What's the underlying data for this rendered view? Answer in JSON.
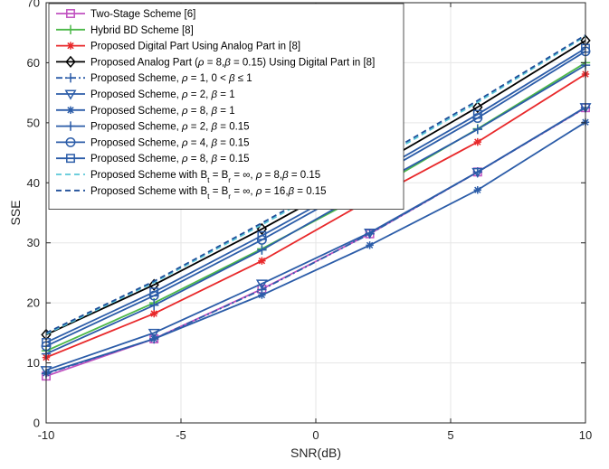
{
  "chart_data": {
    "type": "line",
    "title": "",
    "xlabel": "SNR(dB)",
    "ylabel": "SSE",
    "xlim": [
      -10,
      10
    ],
    "ylim": [
      0,
      70
    ],
    "xticks": [
      -10,
      -5,
      0,
      5,
      10
    ],
    "yticks": [
      0,
      10,
      20,
      30,
      40,
      50,
      60,
      70
    ],
    "grid": true,
    "legend_position": "top-left",
    "x": [
      -10,
      -6,
      -2,
      2,
      6,
      10
    ],
    "series": [
      {
        "name": "Two-Stage Scheme [6]",
        "color": "#c050c0",
        "line": "solid",
        "marker": "square",
        "values": [
          7.8,
          14.0,
          22.3,
          31.5,
          41.8,
          52.5
        ]
      },
      {
        "name": "Hybrid BD Scheme [8]",
        "color": "#4cb848",
        "line": "solid",
        "marker": "plus",
        "values": [
          12.0,
          20.0,
          29.0,
          38.5,
          49.0,
          60.0
        ]
      },
      {
        "name": "Proposed Digital Part Using Analog Part in [8]",
        "color": "#e8282a",
        "line": "solid",
        "marker": "asterisk",
        "values": [
          10.9,
          18.2,
          27.0,
          37.2,
          46.8,
          58.1
        ]
      },
      {
        "name": "Proposed Analog Part (ρ = 8,β = 0.15) Using Digital Part in [8]",
        "color": "#000000",
        "line": "solid",
        "marker": "diamond",
        "values": [
          14.7,
          23.0,
          32.3,
          42.2,
          52.6,
          63.7
        ]
      },
      {
        "name": "Proposed Scheme, ρ = 1, 0 < β ≤ 1",
        "color": "#2b5ca8",
        "line": "dashdot",
        "marker": "plus",
        "values": [
          8.2,
          14.0,
          22.2,
          31.5,
          41.8,
          52.5
        ]
      },
      {
        "name": "Proposed Scheme, ρ = 2, β = 1",
        "color": "#2b5ca8",
        "line": "solid",
        "marker": "triangle-down",
        "values": [
          8.8,
          15.0,
          23.2,
          31.7,
          41.8,
          52.6
        ]
      },
      {
        "name": "Proposed Scheme, ρ = 8, β = 1",
        "color": "#2b5ca8",
        "line": "solid",
        "marker": "asterisk",
        "values": [
          8.3,
          14.0,
          21.3,
          29.6,
          38.8,
          50.1
        ]
      },
      {
        "name": "Proposed Scheme, ρ = 2, β = 0.15",
        "color": "#2b5ca8",
        "line": "solid",
        "marker": "plus",
        "values": [
          11.5,
          19.6,
          28.8,
          39.0,
          48.9,
          59.6
        ]
      },
      {
        "name": "Proposed Scheme, ρ = 4, β = 0.15",
        "color": "#2b5ca8",
        "line": "solid",
        "marker": "circle",
        "values": [
          12.8,
          21.2,
          30.5,
          40.5,
          50.8,
          61.9
        ]
      },
      {
        "name": "Proposed Scheme, ρ = 8, β = 0.15",
        "color": "#2b5ca8",
        "line": "solid",
        "marker": "square",
        "values": [
          13.4,
          21.8,
          31.2,
          41.1,
          51.4,
          62.4
        ]
      },
      {
        "name": "Proposed Scheme with Bt = Br = ∞, ρ = 8,β = 0.15",
        "color": "#5ac8d8",
        "line": "dashed",
        "marker": "none",
        "values": [
          14.8,
          23.4,
          33.0,
          43.0,
          53.4,
          64.4
        ]
      },
      {
        "name": "Proposed Scheme with Bt = Br = ∞, ρ = 16,β = 0.15",
        "color": "#1f4e99",
        "line": "dashed",
        "marker": "none",
        "values": [
          15.0,
          23.6,
          33.3,
          43.3,
          53.7,
          64.6
        ]
      }
    ]
  },
  "legend": [
    {
      "label": "Two-Stage Scheme [6]"
    },
    {
      "label": "Hybrid BD Scheme [8]"
    },
    {
      "label": "Proposed Digital Part Using Analog Part in [8]"
    },
    {
      "label": "Proposed Analog Part (ρ = 8,β = 0.15) Using Digital Part in [8]",
      "italic": [
        "ρ",
        "β"
      ]
    },
    {
      "label": "Proposed Scheme, ρ = 1, 0 < β ≤ 1",
      "italic": [
        "ρ",
        "β"
      ]
    },
    {
      "label": "Proposed Scheme, ρ = 2, β = 1",
      "italic": [
        "ρ",
        "β"
      ]
    },
    {
      "label": "Proposed Scheme, ρ = 8, β = 1",
      "italic": [
        "ρ",
        "β"
      ]
    },
    {
      "label": "Proposed Scheme, ρ = 2, β = 0.15",
      "italic": [
        "ρ",
        "β"
      ]
    },
    {
      "label": "Proposed Scheme, ρ = 4, β = 0.15",
      "italic": [
        "ρ",
        "β"
      ]
    },
    {
      "label": "Proposed Scheme, ρ = 8, β = 0.15",
      "italic": [
        "ρ",
        "β"
      ]
    },
    {
      "label": "Proposed Scheme with Bt = Br = ∞, ρ = 8,β = 0.15",
      "italic": [
        "ρ",
        "β"
      ],
      "subscripts": true
    },
    {
      "label": "Proposed Scheme with Bt = Br = ∞, ρ = 16,β = 0.15",
      "italic": [
        "ρ",
        "β"
      ],
      "subscripts": true
    }
  ],
  "colors": {
    "axis": "#262626",
    "grid": "#e6e6e6"
  }
}
